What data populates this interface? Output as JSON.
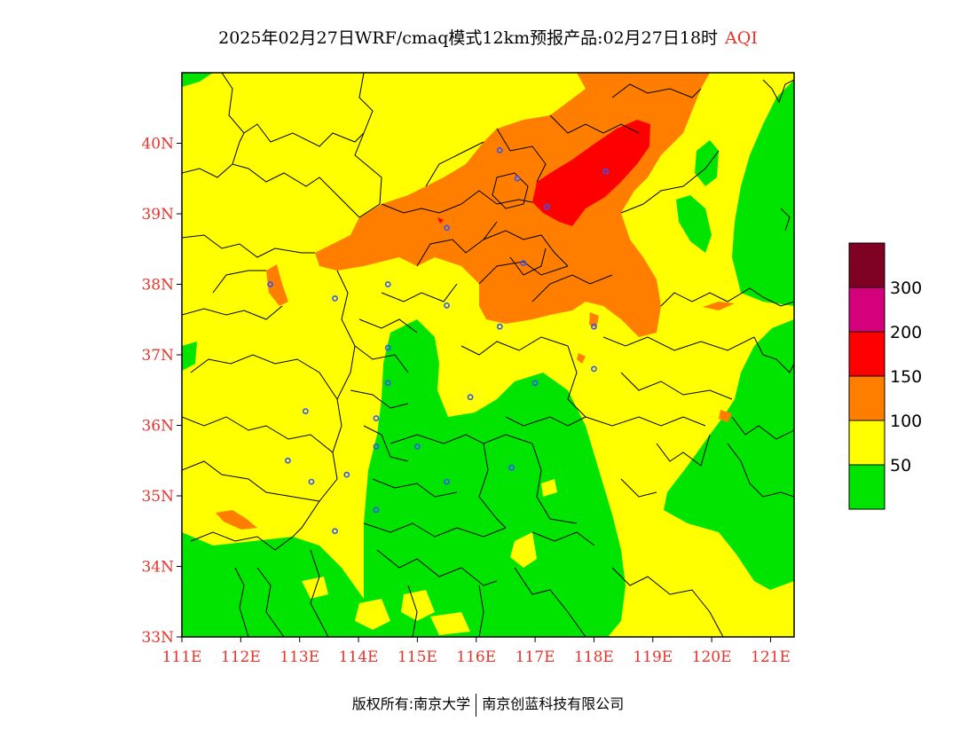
{
  "title": {
    "main": "2025年02月27日WRF/cmaq模式12km预报产品:02月27日18时",
    "variable": "AQI"
  },
  "map": {
    "lon_range": [
      111,
      121.4
    ],
    "lat_range": [
      33,
      41
    ],
    "lon_ticks": [
      "111E",
      "112E",
      "113E",
      "114E",
      "115E",
      "116E",
      "117E",
      "118E",
      "119E",
      "120E",
      "121E"
    ],
    "lat_ticks": [
      "33N",
      "34N",
      "35N",
      "36N",
      "37N",
      "38N",
      "39N",
      "40N"
    ],
    "cities": [
      [
        116.4,
        39.9
      ],
      [
        116.7,
        39.5
      ],
      [
        117.2,
        39.1
      ],
      [
        118.2,
        39.6
      ],
      [
        115.5,
        38.8
      ],
      [
        116.8,
        38.3
      ],
      [
        114.5,
        38.0
      ],
      [
        113.6,
        37.8
      ],
      [
        112.5,
        38.0
      ],
      [
        115.5,
        37.7
      ],
      [
        116.4,
        37.4
      ],
      [
        118.0,
        37.4
      ],
      [
        114.5,
        37.1
      ],
      [
        114.5,
        36.6
      ],
      [
        115.9,
        36.4
      ],
      [
        117.0,
        36.6
      ],
      [
        118.0,
        36.8
      ],
      [
        113.1,
        36.2
      ],
      [
        114.3,
        36.1
      ],
      [
        114.3,
        35.7
      ],
      [
        115.0,
        35.7
      ],
      [
        113.8,
        35.3
      ],
      [
        112.8,
        35.5
      ],
      [
        113.2,
        35.2
      ],
      [
        115.5,
        35.2
      ],
      [
        116.6,
        35.4
      ],
      [
        114.3,
        34.8
      ],
      [
        113.6,
        34.5
      ]
    ]
  },
  "legend": {
    "colors": [
      "#00e400",
      "#ffff00",
      "#ff7e00",
      "#ff0000",
      "#d4007c",
      "#7e0023"
    ],
    "labels": [
      "50",
      "100",
      "150",
      "200",
      "300"
    ]
  },
  "footer": {
    "left": "版权所有:南京大学",
    "right": "南京创蓝科技有限公司"
  }
}
